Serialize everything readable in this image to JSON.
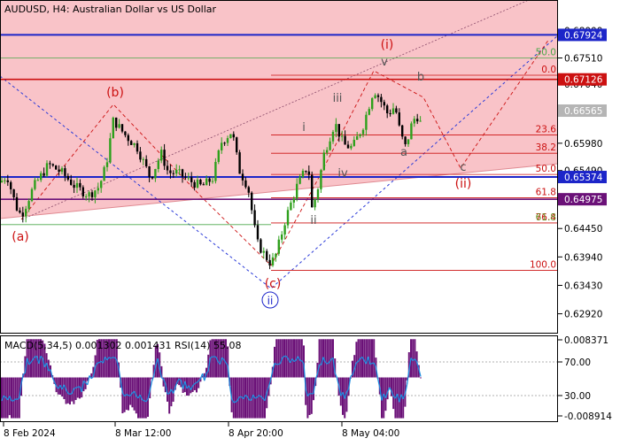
{
  "header": {
    "symbol_label": "AUDUSD, H4:  Australian Dollar vs US Dollar"
  },
  "chart_data": {
    "type": "candlestick",
    "symbol": "AUDUSD",
    "timeframe": "H4",
    "title": "AUDUSD, H4:  Australian Dollar vs US Dollar",
    "price_axis": {
      "ylim": [
        0.6258,
        0.6855
      ],
      "tick_labels": [
        "0.68000",
        "0.67510",
        "0.67040",
        "0.66565",
        "0.65980",
        "0.65490",
        "0.64975",
        "0.64450",
        "0.63940",
        "0.63430",
        "0.62920"
      ]
    },
    "time_axis": {
      "tick_labels": [
        "8 Feb 2024",
        "8 Mar 12:00",
        "8 Apr 20:00",
        "8 May 04:00"
      ]
    },
    "price_markers": [
      {
        "value": 0.67924,
        "label": "0.67924",
        "color": "#1c25c9"
      },
      {
        "value": 0.67126,
        "label": "0.67126",
        "color": "#cc1111"
      },
      {
        "value": 0.66565,
        "label": "0.66565",
        "color": "#b5b5b5"
      },
      {
        "value": 0.65374,
        "label": "0.65374",
        "color": "#1c25c9"
      },
      {
        "value": 0.64975,
        "label": "0.64975",
        "color": "#6b1178"
      }
    ],
    "fibonacci_levels": [
      {
        "label": "0.0",
        "value": 0.672,
        "color": "#cc1111"
      },
      {
        "label": "23.6",
        "value": 0.6613,
        "color": "#cc1111"
      },
      {
        "label": "38.2",
        "value": 0.658,
        "color": "#cc1111"
      },
      {
        "label": "50.0",
        "value": 0.6542,
        "color": "#cc1111"
      },
      {
        "label": "61.8",
        "value": 0.65,
        "color": "#cc1111"
      },
      {
        "label": "76.4",
        "value": 0.6455,
        "color": "#cc1111"
      },
      {
        "label": "100.0",
        "value": 0.637,
        "color": "#cc1111"
      }
    ],
    "fibonacci_extension_label": "50.0",
    "fibonacci_overlap_label": "61.8",
    "wave_labels": {
      "a_major": "(a)",
      "b_major": "(b)",
      "c_major": "(c)",
      "ii_circled": "ii",
      "i_major": "(i)",
      "ii_major": "(ii)",
      "i_minor": "i",
      "ii_minor": "ii",
      "iii_minor": "iii",
      "iv_minor": "iv",
      "v_minor": "v",
      "a_minor": "a",
      "b_minor": "b",
      "c_minor": "c"
    },
    "indicator": {
      "label": "MACD(5,34,5) 0.001302 0.001431 RSI(14) 55.08",
      "ylim": [
        -0.008914,
        0.008371
      ],
      "tick_labels": [
        "0.008371",
        "70.00",
        "30.00",
        "-0.008914"
      ]
    },
    "colors": {
      "bull_candle": "#2ea01c",
      "bear_candle": "#000000",
      "macd_histogram": "#6b1178",
      "rsi_line": "#1f8fe0",
      "pink_zone": "#f9c3c8",
      "blue_level": "#1c25c9",
      "red_level": "#cc1111"
    }
  }
}
